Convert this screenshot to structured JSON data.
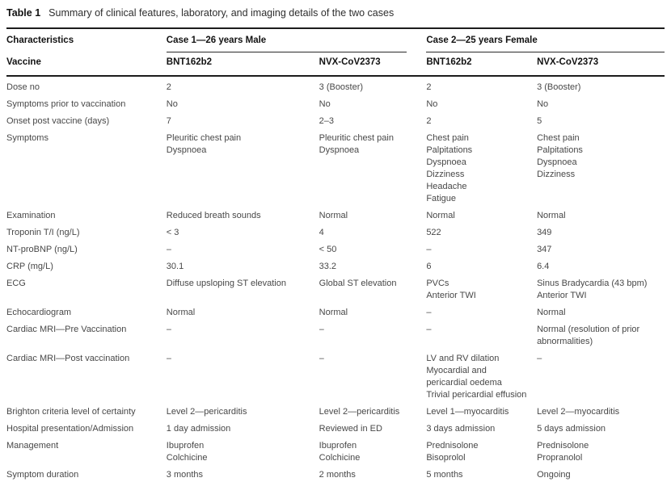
{
  "table": {
    "label": "Table 1",
    "caption": "Summary of clinical features, laboratory, and imaging details of the two cases",
    "col_group_header": "Characteristics",
    "col_subgroup_header": "Vaccine",
    "groups": [
      {
        "label": "Case 1—26 years Male",
        "vaccines": [
          "BNT162b2",
          "NVX-CoV2373"
        ]
      },
      {
        "label": "Case 2—25 years Female",
        "vaccines": [
          "BNT162b2",
          "NVX-CoV2373"
        ]
      }
    ],
    "rows": [
      {
        "label": "Dose no",
        "values": [
          "2",
          "3 (Booster)",
          "2",
          "3 (Booster)"
        ]
      },
      {
        "label": "Symptoms prior to vaccination",
        "values": [
          "No",
          "No",
          "No",
          "No"
        ]
      },
      {
        "label": "Onset post vaccine (days)",
        "values": [
          "7",
          "2–3",
          "2",
          "5"
        ]
      },
      {
        "label": "Symptoms",
        "values": [
          "Pleuritic chest pain\nDyspnoea",
          "Pleuritic chest pain\nDyspnoea",
          "Chest pain\nPalpitations\nDyspnoea\nDizziness\nHeadache\nFatigue",
          "Chest pain\nPalpitations\nDyspnoea\nDizziness"
        ]
      },
      {
        "label": "Examination",
        "values": [
          "Reduced breath sounds",
          "Normal",
          "Normal",
          "Normal"
        ]
      },
      {
        "label": "Troponin T/I (ng/L)",
        "values": [
          "< 3",
          "4",
          "522",
          "349"
        ]
      },
      {
        "label": "NT-proBNP (ng/L)",
        "values": [
          "–",
          "< 50",
          "–",
          "347"
        ]
      },
      {
        "label": "CRP (mg/L)",
        "values": [
          "30.1",
          "33.2",
          "6",
          "6.4"
        ]
      },
      {
        "label": "ECG",
        "values": [
          "Diffuse upsloping ST elevation",
          "Global ST elevation",
          "PVCs\nAnterior TWI",
          "Sinus Bradycardia (43 bpm)\nAnterior TWI"
        ]
      },
      {
        "label": "Echocardiogram",
        "values": [
          "Normal",
          "Normal",
          "–",
          "Normal"
        ]
      },
      {
        "label": "Cardiac MRI—Pre Vaccination",
        "values": [
          "–",
          "–",
          "–",
          "Normal (resolution of prior abnormalities)"
        ]
      },
      {
        "label": "Cardiac MRI—Post vaccination",
        "values": [
          "–",
          "–",
          "LV and RV dilation\nMyocardial and pericardial oedema\nTrivial pericardial effusion",
          "–"
        ]
      },
      {
        "label": "Brighton criteria level of certainty",
        "values": [
          "Level 2—pericarditis",
          "Level 2—pericarditis",
          "Level 1—myocarditis",
          "Level 2—myocarditis"
        ]
      },
      {
        "label": "Hospital presentation/Admission",
        "values": [
          "1 day admission",
          "Reviewed in ED",
          "3 days admission",
          "5 days admission"
        ]
      },
      {
        "label": "Management",
        "values": [
          "Ibuprofen\nColchicine",
          "Ibuprofen\nColchicine",
          "Prednisolone\nBisoprolol",
          "Prednisolone\nPropranolol"
        ]
      },
      {
        "label": "Symptom duration",
        "values": [
          "3 months",
          "2 months",
          "5 months",
          "Ongoing"
        ]
      }
    ]
  },
  "colors": {
    "rule_heavy": "#1c1c1c",
    "rule_light": "#2a2a2a",
    "header_text": "#121212",
    "body_text": "#484848",
    "background": "#ffffff"
  }
}
